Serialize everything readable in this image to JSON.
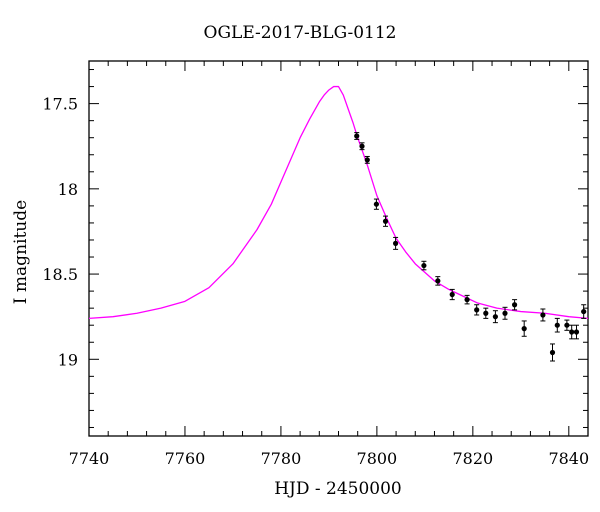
{
  "chart_data": {
    "type": "scatter",
    "title": "OGLE-2017-BLG-0112",
    "xlabel": "HJD - 2450000",
    "ylabel": "I magnitude",
    "xlim": [
      7740,
      7844
    ],
    "ylim": [
      19.45,
      17.25
    ],
    "y_inverted": true,
    "x_ticks": [
      7740,
      7760,
      7780,
      7800,
      7820,
      7840
    ],
    "x_tick_labels": [
      "7740",
      "7760",
      "7780",
      "7800",
      "7820",
      "7840"
    ],
    "y_ticks": [
      17.5,
      18,
      18.5,
      19
    ],
    "y_tick_labels": [
      "17.5",
      "18",
      "18.5",
      "19"
    ],
    "grid": false,
    "series": [
      {
        "kind": "points",
        "color": "#000000",
        "points": [
          {
            "x": 7795.8,
            "y": 17.69,
            "err": 0.02
          },
          {
            "x": 7796.9,
            "y": 17.75,
            "err": 0.02
          },
          {
            "x": 7798.0,
            "y": 17.83,
            "err": 0.02
          },
          {
            "x": 7799.9,
            "y": 18.09,
            "err": 0.03
          },
          {
            "x": 7801.8,
            "y": 18.19,
            "err": 0.03
          },
          {
            "x": 7803.9,
            "y": 18.32,
            "err": 0.035
          },
          {
            "x": 7809.8,
            "y": 18.45,
            "err": 0.025
          },
          {
            "x": 7812.7,
            "y": 18.54,
            "err": 0.025
          },
          {
            "x": 7815.7,
            "y": 18.62,
            "err": 0.03
          },
          {
            "x": 7818.8,
            "y": 18.65,
            "err": 0.025
          },
          {
            "x": 7820.8,
            "y": 18.71,
            "err": 0.03
          },
          {
            "x": 7822.7,
            "y": 18.73,
            "err": 0.03
          },
          {
            "x": 7824.7,
            "y": 18.75,
            "err": 0.035
          },
          {
            "x": 7826.7,
            "y": 18.73,
            "err": 0.035
          },
          {
            "x": 7828.7,
            "y": 18.68,
            "err": 0.03
          },
          {
            "x": 7830.7,
            "y": 18.82,
            "err": 0.045
          },
          {
            "x": 7834.6,
            "y": 18.74,
            "err": 0.035
          },
          {
            "x": 7836.6,
            "y": 18.96,
            "err": 0.05
          },
          {
            "x": 7837.6,
            "y": 18.8,
            "err": 0.04
          },
          {
            "x": 7839.6,
            "y": 18.8,
            "err": 0.03
          },
          {
            "x": 7840.6,
            "y": 18.84,
            "err": 0.04
          },
          {
            "x": 7841.6,
            "y": 18.84,
            "err": 0.04
          },
          {
            "x": 7843.1,
            "y": 18.72,
            "err": 0.04
          }
        ]
      },
      {
        "kind": "model-curve",
        "color": "#ff00ff",
        "curve": [
          [
            7740,
            18.76
          ],
          [
            7745,
            18.75
          ],
          [
            7750,
            18.73
          ],
          [
            7755,
            18.7
          ],
          [
            7760,
            18.66
          ],
          [
            7765,
            18.58
          ],
          [
            7770,
            18.44
          ],
          [
            7775,
            18.24
          ],
          [
            7778,
            18.09
          ],
          [
            7780,
            17.96
          ],
          [
            7782,
            17.83
          ],
          [
            7784,
            17.7
          ],
          [
            7786,
            17.59
          ],
          [
            7788,
            17.49
          ],
          [
            7789,
            17.45
          ],
          [
            7790,
            17.42
          ],
          [
            7791,
            17.4
          ],
          [
            7792,
            17.4
          ],
          [
            7793,
            17.45
          ],
          [
            7794,
            17.53
          ],
          [
            7795,
            17.61
          ],
          [
            7796,
            17.7
          ],
          [
            7797,
            17.78
          ],
          [
            7798,
            17.86
          ],
          [
            7799,
            17.95
          ],
          [
            7800,
            18.04
          ],
          [
            7802,
            18.17
          ],
          [
            7804,
            18.29
          ],
          [
            7806,
            18.37
          ],
          [
            7808,
            18.44
          ],
          [
            7810,
            18.49
          ],
          [
            7812,
            18.54
          ],
          [
            7815,
            18.59
          ],
          [
            7818,
            18.63
          ],
          [
            7821,
            18.67
          ],
          [
            7825,
            18.7
          ],
          [
            7830,
            18.72
          ],
          [
            7835,
            18.73
          ],
          [
            7840,
            18.75
          ],
          [
            7844,
            18.76
          ]
        ]
      }
    ]
  }
}
